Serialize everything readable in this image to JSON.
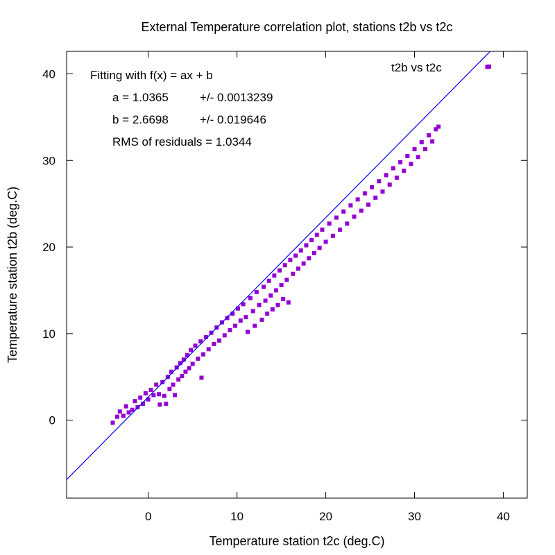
{
  "chart_data": {
    "type": "scatter",
    "title": "External Temperature correlation plot, stations t2b vs t2c",
    "xlabel": "Temperature station t2c (deg.C)",
    "ylabel": "Temperature station t2b (deg.C)",
    "xlim": [
      -9.2,
      42.7
    ],
    "ylim": [
      -9.0,
      42.6
    ],
    "xticks": [
      "0",
      "10",
      "20",
      "30",
      "40"
    ],
    "yticks": [
      "0",
      "10",
      "20",
      "30",
      "40"
    ],
    "grid": false,
    "legend": {
      "placement": "top-right",
      "entries": [
        "t2b vs t2c"
      ]
    },
    "annotation": {
      "line1": "Fitting with f(x) = ax + b",
      "line2_label": "a = 1.0365",
      "line2_err": "+/- 0.0013239",
      "line3_label": "b = 2.6698",
      "line3_err": "+/- 0.019646",
      "line4": "RMS of residuals = 1.0344"
    },
    "fit": {
      "a": 1.0365,
      "b": 2.6698
    },
    "series": [
      {
        "name": "t2b vs t2c",
        "color": "#9400d3",
        "points": [
          [
            -4.0,
            -0.3
          ],
          [
            -3.5,
            0.4
          ],
          [
            -3.2,
            1.0
          ],
          [
            -2.8,
            0.5
          ],
          [
            -2.5,
            1.6
          ],
          [
            -2.2,
            0.9
          ],
          [
            -1.8,
            1.2
          ],
          [
            -1.5,
            2.2
          ],
          [
            -1.2,
            1.5
          ],
          [
            -0.9,
            2.6
          ],
          [
            -0.6,
            1.9
          ],
          [
            -0.3,
            3.1
          ],
          [
            0.0,
            2.4
          ],
          [
            0.3,
            3.5
          ],
          [
            0.6,
            2.9
          ],
          [
            0.9,
            4.1
          ],
          [
            1.2,
            3.0
          ],
          [
            1.3,
            1.8
          ],
          [
            1.6,
            4.4
          ],
          [
            1.8,
            2.8
          ],
          [
            2.0,
            1.9
          ],
          [
            2.2,
            5.0
          ],
          [
            2.4,
            3.6
          ],
          [
            2.6,
            5.6
          ],
          [
            2.8,
            4.1
          ],
          [
            3.0,
            2.9
          ],
          [
            3.2,
            6.1
          ],
          [
            3.4,
            4.7
          ],
          [
            3.6,
            6.6
          ],
          [
            3.8,
            5.1
          ],
          [
            4.0,
            7.0
          ],
          [
            4.2,
            5.6
          ],
          [
            4.4,
            7.5
          ],
          [
            4.6,
            6.0
          ],
          [
            4.8,
            8.1
          ],
          [
            5.0,
            6.5
          ],
          [
            5.3,
            8.6
          ],
          [
            5.6,
            7.1
          ],
          [
            5.9,
            9.1
          ],
          [
            6.0,
            4.9
          ],
          [
            6.2,
            7.6
          ],
          [
            6.5,
            9.6
          ],
          [
            6.8,
            8.2
          ],
          [
            7.1,
            10.1
          ],
          [
            7.4,
            8.8
          ],
          [
            7.7,
            10.7
          ],
          [
            8.0,
            9.2
          ],
          [
            8.3,
            11.3
          ],
          [
            8.6,
            9.8
          ],
          [
            8.9,
            11.8
          ],
          [
            9.2,
            10.4
          ],
          [
            9.5,
            12.3
          ],
          [
            9.8,
            10.9
          ],
          [
            10.1,
            12.9
          ],
          [
            10.4,
            11.5
          ],
          [
            10.7,
            13.4
          ],
          [
            11.0,
            11.9
          ],
          [
            11.2,
            10.2
          ],
          [
            11.5,
            14.1
          ],
          [
            11.8,
            12.6
          ],
          [
            12.0,
            10.9
          ],
          [
            12.2,
            14.8
          ],
          [
            12.5,
            13.3
          ],
          [
            12.8,
            11.6
          ],
          [
            13.0,
            15.4
          ],
          [
            13.2,
            13.8
          ],
          [
            13.4,
            12.3
          ],
          [
            13.6,
            16.1
          ],
          [
            13.8,
            14.4
          ],
          [
            14.0,
            12.8
          ],
          [
            14.2,
            16.7
          ],
          [
            14.4,
            15.0
          ],
          [
            14.6,
            13.3
          ],
          [
            14.8,
            17.3
          ],
          [
            15.0,
            15.6
          ],
          [
            15.2,
            14.0
          ],
          [
            15.4,
            17.9
          ],
          [
            15.6,
            16.2
          ],
          [
            15.8,
            13.6
          ],
          [
            16.0,
            18.5
          ],
          [
            16.3,
            16.9
          ],
          [
            16.6,
            19.0
          ],
          [
            16.9,
            17.5
          ],
          [
            17.2,
            19.6
          ],
          [
            17.5,
            18.1
          ],
          [
            17.8,
            20.2
          ],
          [
            18.1,
            18.7
          ],
          [
            18.4,
            20.8
          ],
          [
            18.7,
            19.3
          ],
          [
            19.0,
            21.4
          ],
          [
            19.3,
            19.9
          ],
          [
            19.6,
            22.0
          ],
          [
            20.0,
            20.6
          ],
          [
            20.4,
            22.7
          ],
          [
            20.8,
            21.3
          ],
          [
            21.2,
            23.4
          ],
          [
            21.6,
            22.0
          ],
          [
            22.0,
            24.1
          ],
          [
            22.4,
            22.7
          ],
          [
            22.8,
            24.8
          ],
          [
            23.2,
            23.5
          ],
          [
            23.6,
            25.5
          ],
          [
            24.0,
            24.2
          ],
          [
            24.4,
            26.2
          ],
          [
            24.8,
            24.9
          ],
          [
            25.2,
            26.9
          ],
          [
            25.6,
            25.7
          ],
          [
            26.0,
            27.6
          ],
          [
            26.4,
            26.4
          ],
          [
            26.8,
            28.3
          ],
          [
            27.2,
            27.2
          ],
          [
            27.6,
            29.1
          ],
          [
            28.0,
            28.0
          ],
          [
            28.4,
            29.8
          ],
          [
            28.8,
            28.8
          ],
          [
            29.2,
            30.5
          ],
          [
            29.6,
            29.6
          ],
          [
            30.0,
            31.3
          ],
          [
            30.4,
            30.4
          ],
          [
            30.8,
            32.1
          ],
          [
            31.2,
            31.3
          ],
          [
            31.6,
            32.9
          ],
          [
            32.0,
            32.2
          ],
          [
            32.4,
            33.6
          ],
          [
            32.7,
            33.9
          ],
          [
            38.2,
            40.8
          ]
        ]
      }
    ]
  }
}
